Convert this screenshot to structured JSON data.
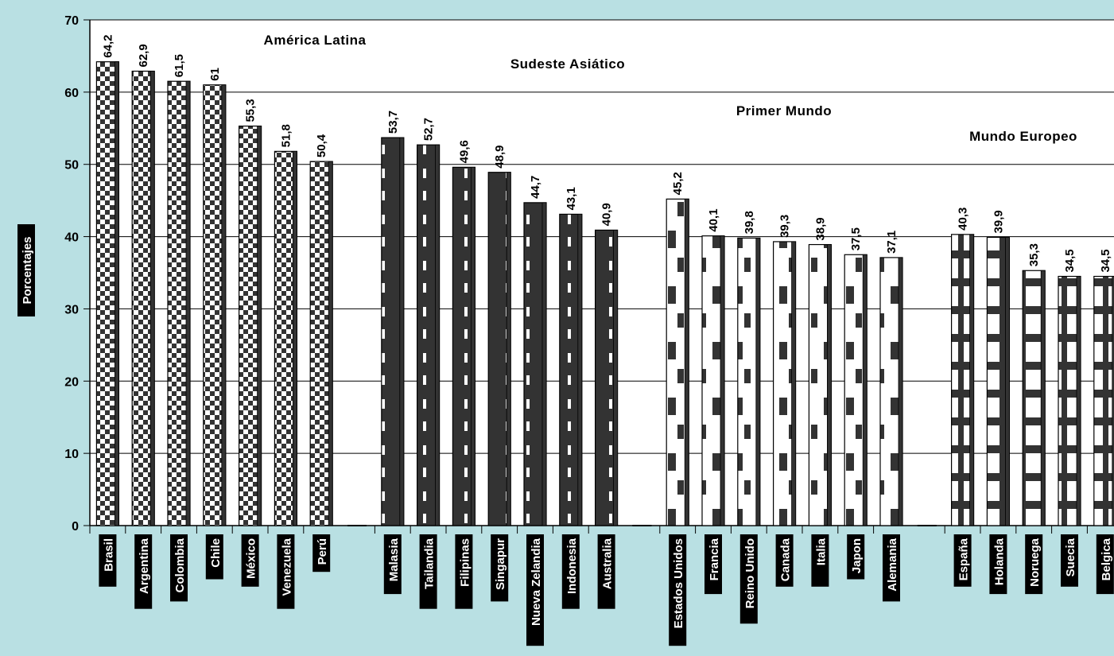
{
  "chart_data": {
    "type": "bar",
    "ylabel": "Porcentajes",
    "ylim": [
      0,
      70
    ],
    "yticks": [
      0,
      10,
      20,
      30,
      40,
      50,
      60,
      70
    ],
    "grid": true,
    "groups": [
      {
        "name": "América Latina",
        "pattern": "checker",
        "categories": [
          "Brasil",
          "Argentina",
          "Colombia",
          "Chile",
          "México",
          "Venezuela",
          "Perú"
        ],
        "values": [
          64.2,
          62.9,
          61.5,
          61,
          55.3,
          51.8,
          50.4
        ],
        "labels": [
          "64,2",
          "62,9",
          "61,5",
          "61",
          "55,3",
          "51,8",
          "50,4"
        ]
      },
      {
        "name": "Sudeste Asiático",
        "pattern": "dark",
        "categories": [
          "Malasia",
          "Tailandia",
          "Filipinas",
          "Singapur",
          "Nueva Zelandia",
          "Indonesia",
          "Australia"
        ],
        "values": [
          53.7,
          52.7,
          49.6,
          48.9,
          44.7,
          43.1,
          40.9
        ],
        "labels": [
          "53,7",
          "52,7",
          "49,6",
          "48,9",
          "44,7",
          "43,1",
          "40,9"
        ]
      },
      {
        "name": "Primer Mundo",
        "pattern": "light",
        "categories": [
          "Estados Unidos",
          "Francia",
          "Reino Unido",
          "Canada",
          "Italia",
          "Japon",
          "Alemania"
        ],
        "values": [
          45.2,
          40.1,
          39.8,
          39.3,
          38.9,
          37.5,
          37.1
        ],
        "labels": [
          "45,2",
          "40,1",
          "39,8",
          "39,3",
          "38,9",
          "37,5",
          "37,1"
        ]
      },
      {
        "name": "Mundo Europeo",
        "pattern": "stripe",
        "categories": [
          "España",
          "Holanda",
          "Noruega",
          "Suecia",
          "Belgica"
        ],
        "values": [
          40.3,
          39.9,
          35.3,
          34.5,
          34.5
        ],
        "labels": [
          "40,3",
          "39,9",
          "35,3",
          "34,5",
          "34,5"
        ]
      }
    ],
    "colors": {
      "plot_bg": "#ffffff",
      "page_bg": "#b9e0e3",
      "bar_dark": "#333333",
      "label_bg": "#000000"
    }
  }
}
